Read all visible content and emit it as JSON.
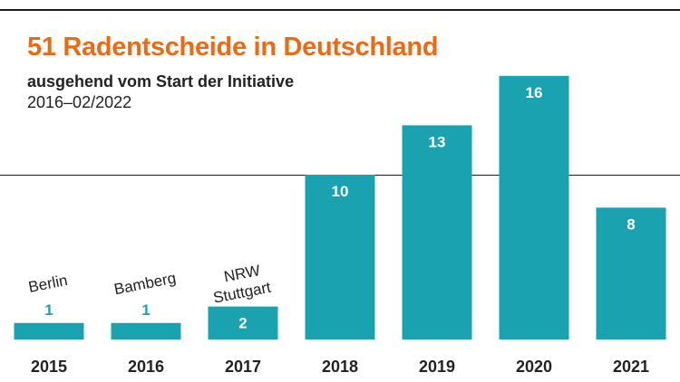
{
  "header": {
    "title": "51 Radentscheide in Deutschland",
    "subtitle": "ausgehend vom Start der Initiative",
    "period": "2016–02/2022"
  },
  "colors": {
    "bar": "#1aa2b1",
    "title": "#ec6a13",
    "text": "#222222",
    "value_on_bar": "#ffffff"
  },
  "chart_data": {
    "type": "bar",
    "title": "51 Radentscheide in Deutschland",
    "categories": [
      "2015",
      "2016",
      "2017",
      "2018",
      "2019",
      "2020",
      "2021"
    ],
    "values": [
      1,
      1,
      2,
      10,
      13,
      16,
      8
    ],
    "annotations": [
      {
        "category": "2015",
        "lines": [
          "Berlin"
        ]
      },
      {
        "category": "2016",
        "lines": [
          "Bamberg"
        ]
      },
      {
        "category": "2017",
        "lines": [
          "NRW",
          "Stuttgart"
        ]
      }
    ],
    "xlabel": "",
    "ylabel": "",
    "ylim": [
      0,
      16
    ],
    "grid": false,
    "legend": "none"
  }
}
